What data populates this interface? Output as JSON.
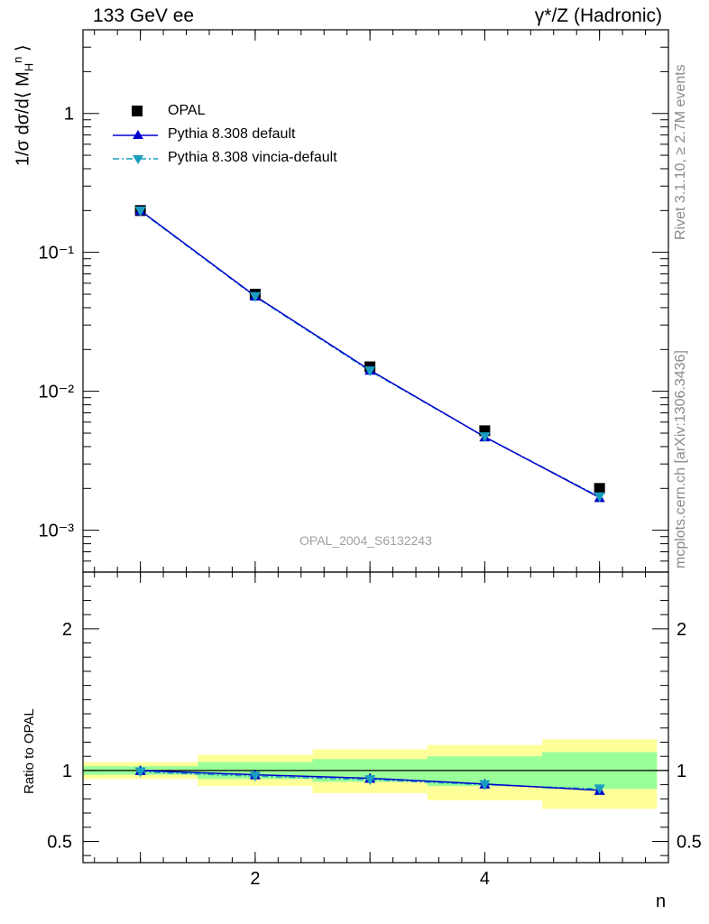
{
  "header": {
    "left": "133 GeV ee",
    "right": "γ*/Z (Hadronic)"
  },
  "side_labels": {
    "rivet": "Rivet 3.1.10, ≥ 2.7M events",
    "mcplots": "mcplots.cern.ch [arXiv:1306.3436]"
  },
  "watermark": "OPAL_2004_S6132243",
  "chart_data": [
    {
      "type": "scatter",
      "title": "",
      "xlabel": "n",
      "ylabel": "1/σ dσ/d⟨ M_H^n ⟩",
      "ylabel_parts": {
        "main": "1/σ dσ/d⟨ M",
        "sub": "H",
        "sup": "n",
        "close": " ⟩"
      },
      "yscale": "log",
      "xlim": [
        0.5,
        5.6
      ],
      "ylim": [
        0.0005,
        4
      ],
      "x": [
        1,
        2,
        3,
        4,
        5
      ],
      "y_tick_labels": [
        "10⁻³",
        "10⁻²",
        "10⁻¹",
        "1"
      ],
      "x_tick_labels": [
        "2",
        "4"
      ],
      "legend_position": "top-left",
      "series": [
        {
          "name": "OPAL",
          "values": [
            0.2,
            0.05,
            0.015,
            0.0052,
            0.002
          ],
          "color": "#000000",
          "marker": "square"
        },
        {
          "name": "Pythia 8.308 default",
          "values": [
            0.2,
            0.0485,
            0.0142,
            0.0047,
            0.00172
          ],
          "color": "#0000cc",
          "marker": "triangle-up",
          "line": "solid"
        },
        {
          "name": "Pythia 8.308 vincia-default",
          "values": [
            0.198,
            0.048,
            0.014,
            0.0047,
            0.00174
          ],
          "color": "#1a9ec0",
          "marker": "triangle-down",
          "line": "dash-dot"
        }
      ]
    },
    {
      "type": "line",
      "title": "",
      "xlabel": "n",
      "ylabel": "Ratio to OPAL",
      "ylim": [
        0.35,
        2.4
      ],
      "xlim": [
        0.5,
        5.6
      ],
      "y_tick_labels": [
        "0.5",
        "1",
        "2"
      ],
      "x_tick_labels": [
        "2",
        "4"
      ],
      "bin_edges": [
        0.5,
        1.5,
        2.5,
        3.5,
        4.5,
        5.5
      ],
      "reference": 1.0,
      "bands": [
        {
          "name": "",
          "color": "#ffff99",
          "lower": [
            0.94,
            0.89,
            0.84,
            0.79,
            0.73
          ],
          "upper": [
            1.06,
            1.11,
            1.15,
            1.18,
            1.22
          ]
        },
        {
          "name": "",
          "color": "#99ff99",
          "lower": [
            0.97,
            0.94,
            0.92,
            0.89,
            0.87
          ],
          "upper": [
            1.03,
            1.06,
            1.08,
            1.1,
            1.13
          ]
        }
      ],
      "x": [
        1,
        2,
        3,
        4,
        5
      ],
      "series": [
        {
          "name": "Pythia 8.308 default",
          "values": [
            1.0,
            0.97,
            0.945,
            0.905,
            0.86
          ],
          "color": "#0000cc",
          "marker": "triangle-up",
          "line": "solid"
        },
        {
          "name": "Pythia 8.308 vincia-default",
          "values": [
            0.99,
            0.96,
            0.935,
            0.9,
            0.87
          ],
          "color": "#1a9ec0",
          "marker": "triangle-down",
          "line": "dash-dot"
        }
      ]
    }
  ]
}
